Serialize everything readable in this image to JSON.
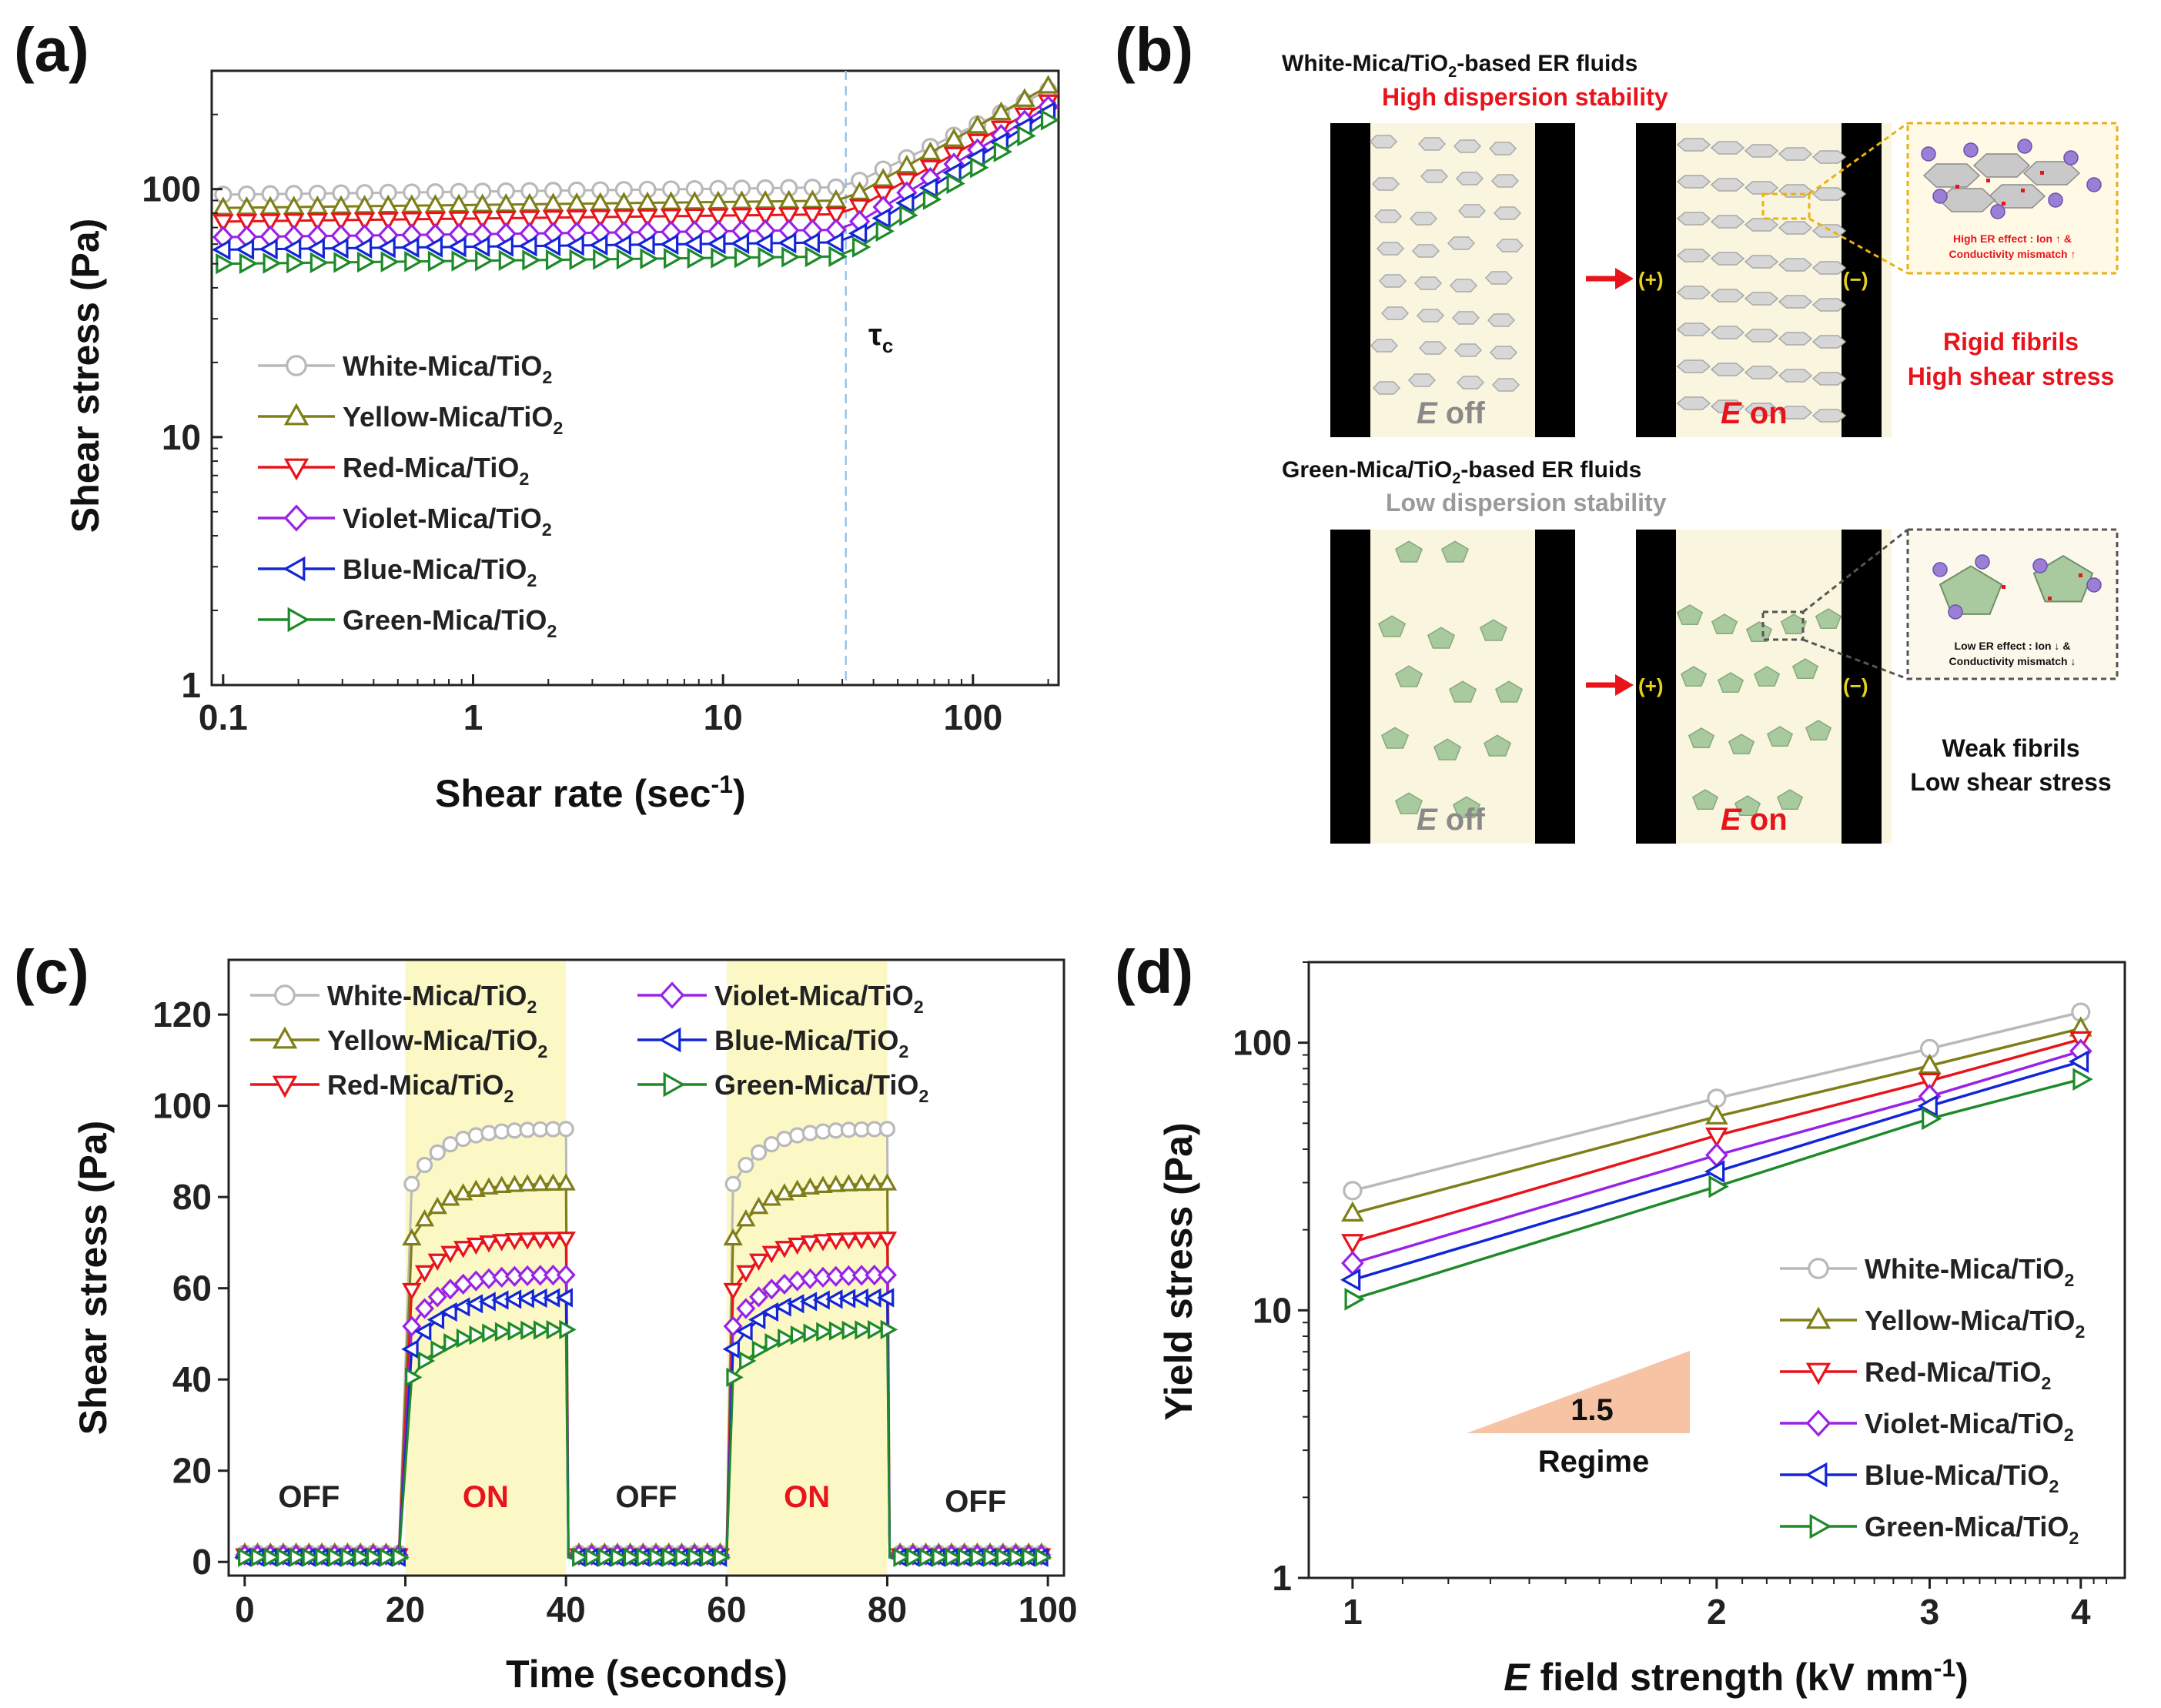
{
  "series_colors": {
    "White": "#b9b9b9",
    "Yellow": "#7f7f1a",
    "Red": "#e8141b",
    "Violet": "#9a22e6",
    "Blue": "#1326d6",
    "Green": "#1e8a2a"
  },
  "legend": {
    "items": [
      {
        "key": "White",
        "prefix": "White-Mica/TiO",
        "sub": "2"
      },
      {
        "key": "Yellow",
        "prefix": "Yellow-Mica/TiO",
        "sub": "2"
      },
      {
        "key": "Red",
        "prefix": "Red-Mica/TiO",
        "sub": "2"
      },
      {
        "key": "Violet",
        "prefix": "Violet-Mica/TiO",
        "sub": "2"
      },
      {
        "key": "Blue",
        "prefix": "Blue-Mica/TiO",
        "sub": "2"
      },
      {
        "key": "Green",
        "prefix": "Green-Mica/TiO",
        "sub": "2"
      }
    ]
  },
  "chart_data": [
    {
      "panel": "(a)",
      "type": "line",
      "xscale": "log",
      "yscale": "log",
      "xlim": [
        0.09,
        220
      ],
      "ylim": [
        1,
        300
      ],
      "xlabel": "Shear rate (sec",
      "xlabel_sup": "-1",
      "xlabel_end": ")",
      "ylabel": "Shear stress (Pa)",
      "xticks": [
        0.1,
        1,
        10,
        100
      ],
      "xticklabels": [
        "0.1",
        "1",
        "10",
        "100"
      ],
      "yticks": [
        1,
        10,
        100
      ],
      "yticklabels": [
        "1",
        "10",
        "100"
      ],
      "annotation": "τ",
      "annotation_sub": "c",
      "critical_rate": 31,
      "series": [
        {
          "name": "White-Mica/TiO2",
          "key": "White",
          "marker": "circle",
          "plateau": 95,
          "end": 250
        },
        {
          "name": "Yellow-Mica/TiO2",
          "key": "Yellow",
          "marker": "triangle-up",
          "plateau": 84,
          "end": 260
        },
        {
          "name": "Red-Mica/TiO2",
          "key": "Red",
          "marker": "triangle-down",
          "plateau": 74,
          "end": 225
        },
        {
          "name": "Violet-Mica/TiO2",
          "key": "Violet",
          "marker": "diamond",
          "plateau": 64,
          "end": 215
        },
        {
          "name": "Blue-Mica/TiO2",
          "key": "Blue",
          "marker": "triangle-left",
          "plateau": 57,
          "end": 205
        },
        {
          "name": "Green-Mica/TiO2",
          "key": "Green",
          "marker": "triangle-right",
          "plateau": 50,
          "end": 190
        }
      ]
    },
    {
      "panel": "(c)",
      "type": "line",
      "xlim": [
        -2,
        102
      ],
      "ylim": [
        -3,
        132
      ],
      "xlabel": "Time (seconds)",
      "ylabel": "Shear stress (Pa)",
      "xticks": [
        0,
        20,
        40,
        60,
        80,
        100
      ],
      "xticklabels": [
        "0",
        "20",
        "40",
        "60",
        "80",
        "100"
      ],
      "yticks": [
        0,
        20,
        40,
        60,
        80,
        100,
        120
      ],
      "yticklabels": [
        "0",
        "20",
        "40",
        "60",
        "80",
        "100",
        "120"
      ],
      "on_windows": [
        [
          20,
          40
        ],
        [
          60,
          80
        ]
      ],
      "region_labels": [
        {
          "text": "OFF",
          "x": 8,
          "y": 12,
          "on": false
        },
        {
          "text": "ON",
          "x": 30,
          "y": 12,
          "on": true
        },
        {
          "text": "OFF",
          "x": 50,
          "y": 12,
          "on": false
        },
        {
          "text": "ON",
          "x": 70,
          "y": 12,
          "on": true
        },
        {
          "text": "OFF",
          "x": 91,
          "y": 11,
          "on": false
        }
      ],
      "series": [
        {
          "name": "White-Mica/TiO2",
          "key": "White",
          "marker": "circle",
          "initial": 80,
          "saturation": 95,
          "off": 2
        },
        {
          "name": "Yellow-Mica/TiO2",
          "key": "Yellow",
          "marker": "triangle-up",
          "initial": 68,
          "saturation": 83,
          "off": 2
        },
        {
          "name": "Red-Mica/TiO2",
          "key": "Red",
          "marker": "triangle-down",
          "initial": 57,
          "saturation": 71,
          "off": 1.5
        },
        {
          "name": "Violet-Mica/TiO2",
          "key": "Violet",
          "marker": "diamond",
          "initial": 49,
          "saturation": 63,
          "off": 1.5
        },
        {
          "name": "Blue-Mica/TiO2",
          "key": "Blue",
          "marker": "triangle-left",
          "initial": 44,
          "saturation": 58,
          "off": 1
        },
        {
          "name": "Green-Mica/TiO2",
          "key": "Green",
          "marker": "triangle-right",
          "initial": 38,
          "saturation": 51,
          "off": 1
        }
      ]
    },
    {
      "panel": "(d)",
      "type": "line",
      "xscale": "log",
      "yscale": "log",
      "xlim": [
        0.92,
        4.35
      ],
      "ylim": [
        1,
        200
      ],
      "xlabel_italic": "E",
      "xlabel": " field strength (kV mm",
      "xlabel_sup": "-1",
      "xlabel_end": ")",
      "ylabel": "Yield stress (Pa)",
      "xticks": [
        1,
        2,
        3,
        4
      ],
      "xticklabels": [
        "1",
        "2",
        "3",
        "4"
      ],
      "yticks": [
        1,
        10,
        100
      ],
      "yticklabels": [
        "1",
        "10",
        "100"
      ],
      "x": [
        1,
        2,
        3,
        4
      ],
      "slope_value": "1.5",
      "slope_label": "Regime",
      "series": [
        {
          "name": "White-Mica/TiO2",
          "key": "White",
          "marker": "circle",
          "values": [
            28,
            62,
            95,
            130
          ]
        },
        {
          "name": "Yellow-Mica/TiO2",
          "key": "Yellow",
          "marker": "triangle-up",
          "values": [
            23,
            53,
            82,
            113
          ]
        },
        {
          "name": "Red-Mica/TiO2",
          "key": "Red",
          "marker": "triangle-down",
          "values": [
            18,
            45,
            72,
            103
          ]
        },
        {
          "name": "Violet-Mica/TiO2",
          "key": "Violet",
          "marker": "diamond",
          "values": [
            15,
            38,
            63,
            93
          ]
        },
        {
          "name": "Blue-Mica/TiO2",
          "key": "Blue",
          "marker": "triangle-left",
          "values": [
            13,
            33,
            58,
            85
          ]
        },
        {
          "name": "Green-Mica/TiO2",
          "key": "Green",
          "marker": "triangle-right",
          "values": [
            11,
            29,
            52,
            73
          ]
        }
      ]
    }
  ],
  "panel_labels": {
    "a": "(a)",
    "b": "(b)",
    "c": "(c)",
    "d": "(d)"
  },
  "schematic": {
    "top": {
      "title_prefix": "White-Mica/TiO",
      "title_sub": "2",
      "title_suffix": "-based  ER fluids",
      "subtitle": "High dispersion stability",
      "off_italic": "E",
      "off_text": " off",
      "on_italic": "E",
      "on_text": " on",
      "plus": "(+)",
      "minus": "(−)",
      "inset_line1": "High ER effect : Ion ↑ &",
      "inset_line2": "Conductivity mismatch ↑",
      "result_line1": "Rigid fibrils",
      "result_line2": "High shear stress"
    },
    "bottom": {
      "title_prefix": "Green-Mica/TiO",
      "title_sub": "2",
      "title_suffix": "-based  ER fluids",
      "subtitle": "Low dispersion stability",
      "off_italic": "E",
      "off_text": " off",
      "on_italic": "E",
      "on_text": " on",
      "plus": "(+)",
      "minus": "(−)",
      "inset_line1": "Low ER effect : Ion ↓ &",
      "inset_line2": "Conductivity mismatch ↓",
      "result_line1": "Weak fibrils",
      "result_line2": "Low shear stress"
    }
  }
}
